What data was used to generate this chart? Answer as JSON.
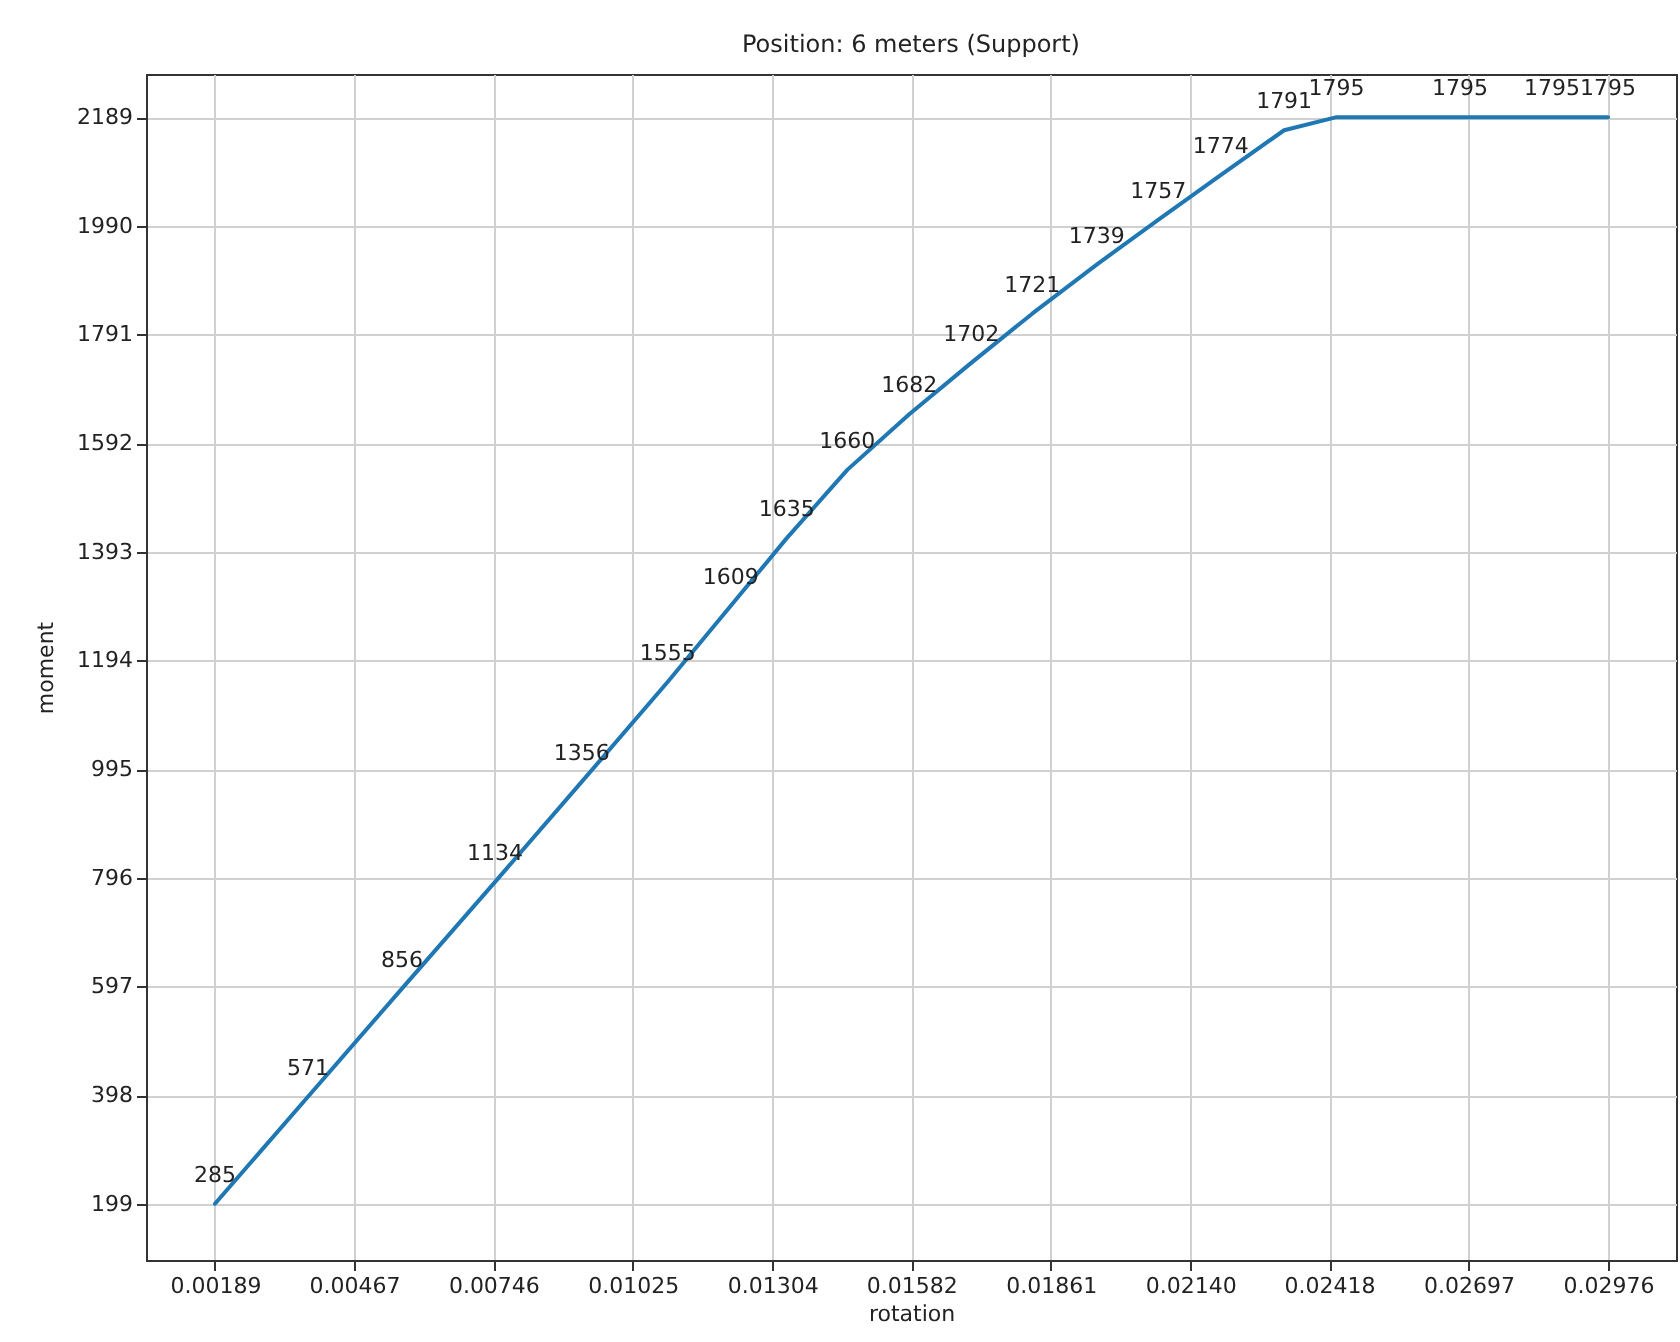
{
  "chart_data": {
    "type": "line",
    "title": "Position: 6 meters (Support)",
    "xlabel": "rotation",
    "ylabel": "moment",
    "x": [
      0.00189,
      0.00375,
      0.00563,
      0.00749,
      0.00923,
      0.01095,
      0.01221,
      0.01333,
      0.01454,
      0.01578,
      0.01702,
      0.01824,
      0.01953,
      0.02076,
      0.02201,
      0.02328,
      0.02433,
      0.0268,
      0.02864,
      0.02976
    ],
    "series": [
      {
        "color": "#1f77b4",
        "values": [
          199,
          395,
          593,
          788,
          972,
          1155,
          1294,
          1418,
          1543,
          1645,
          1739,
          1829,
          1919,
          2001,
          2083,
          2165,
          2189,
          2189,
          2189,
          2189
        ]
      }
    ],
    "annotations": [
      {
        "text": "285",
        "x": 0.00189,
        "y": 199
      },
      {
        "text": "571",
        "x": 0.00375,
        "y": 395
      },
      {
        "text": "856",
        "x": 0.00563,
        "y": 593
      },
      {
        "text": "1134",
        "x": 0.00749,
        "y": 788
      },
      {
        "text": "1356",
        "x": 0.00923,
        "y": 972
      },
      {
        "text": "1555",
        "x": 0.01095,
        "y": 1155
      },
      {
        "text": "1609",
        "x": 0.01221,
        "y": 1294
      },
      {
        "text": "1635",
        "x": 0.01333,
        "y": 1418
      },
      {
        "text": "1660",
        "x": 0.01454,
        "y": 1543
      },
      {
        "text": "1682",
        "x": 0.01578,
        "y": 1645
      },
      {
        "text": "1702",
        "x": 0.01702,
        "y": 1739
      },
      {
        "text": "1721",
        "x": 0.01824,
        "y": 1829
      },
      {
        "text": "1739",
        "x": 0.01953,
        "y": 1919
      },
      {
        "text": "1757",
        "x": 0.02076,
        "y": 2001
      },
      {
        "text": "1774",
        "x": 0.02201,
        "y": 2083
      },
      {
        "text": "1791",
        "x": 0.02328,
        "y": 2165
      },
      {
        "text": "1795",
        "x": 0.02433,
        "y": 2189
      },
      {
        "text": "1795",
        "x": 0.0268,
        "y": 2189
      },
      {
        "text": "1795",
        "x": 0.02864,
        "y": 2189
      },
      {
        "text": "1795",
        "x": 0.02976,
        "y": 2189
      }
    ],
    "xlim": [
      0.00051,
      0.03112
    ],
    "ylim": [
      96,
      2268
    ],
    "xticks": [
      0.00189,
      0.00467,
      0.00746,
      0.01025,
      0.01304,
      0.01582,
      0.01861,
      {
        "value": 0.0214,
        "label": "0.02140"
      },
      0.02418,
      0.02697,
      0.02976
    ],
    "yticks": [
      199,
      398,
      597,
      796,
      995,
      1194,
      1393,
      1592,
      1791,
      1990,
      2189
    ],
    "grid": true
  }
}
